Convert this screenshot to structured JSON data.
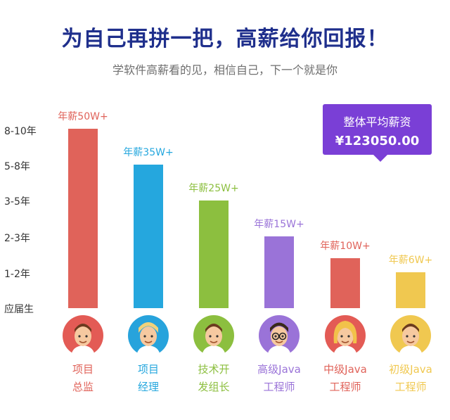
{
  "header": {
    "title": "为自己再拼一把，高薪给你回报！",
    "subtitle": "学软件高薪看的见，相信自己，下一个就是你"
  },
  "callout": {
    "line1": "整体平均薪资",
    "line2": "¥123050.00"
  },
  "chart_data": {
    "type": "bar",
    "y_axis_labels": [
      "应届生",
      "1-2年",
      "2-3年",
      "3-5年",
      "5-8年",
      "8-10年"
    ],
    "categories": [
      "项目总监",
      "项目经理",
      "技术开发组长",
      "高级Java工程师",
      "中级Java工程师",
      "初级Java工程师"
    ],
    "values": [
      5,
      4,
      3,
      2,
      1.4,
      1
    ],
    "value_labels": [
      "年薪50W+",
      "年薪35W+",
      "年薪25W+",
      "年薪15W+",
      "年薪10W+",
      "年薪6W+"
    ],
    "colors": [
      "#e0635a",
      "#25a7de",
      "#8cbf3f",
      "#9a73d8",
      "#e0635a",
      "#f0c850"
    ]
  },
  "roles": [
    {
      "line1": "项目",
      "line2": "总监",
      "color": "#e0635a",
      "avatar_bg": "#e35b55",
      "icon": "man-avatar-icon"
    },
    {
      "line1": "项目",
      "line2": "经理",
      "color": "#25a7de",
      "avatar_bg": "#27a3dc",
      "icon": "blonde-man-avatar-icon"
    },
    {
      "line1": "技术开",
      "line2": "发组长",
      "color": "#8cbf3f",
      "avatar_bg": "#8cbf3f",
      "icon": "man-avatar-icon"
    },
    {
      "line1": "高级Java",
      "line2": "工程师",
      "color": "#9a73d8",
      "avatar_bg": "#9a73d8",
      "icon": "glasses-man-avatar-icon"
    },
    {
      "line1": "中级Java",
      "line2": "工程师",
      "color": "#e0635a",
      "avatar_bg": "#e35b55",
      "icon": "blonde-woman-avatar-icon"
    },
    {
      "line1": "初级Java",
      "line2": "工程师",
      "color": "#f0c850",
      "avatar_bg": "#f0c850",
      "icon": "man-avatar-icon"
    }
  ]
}
